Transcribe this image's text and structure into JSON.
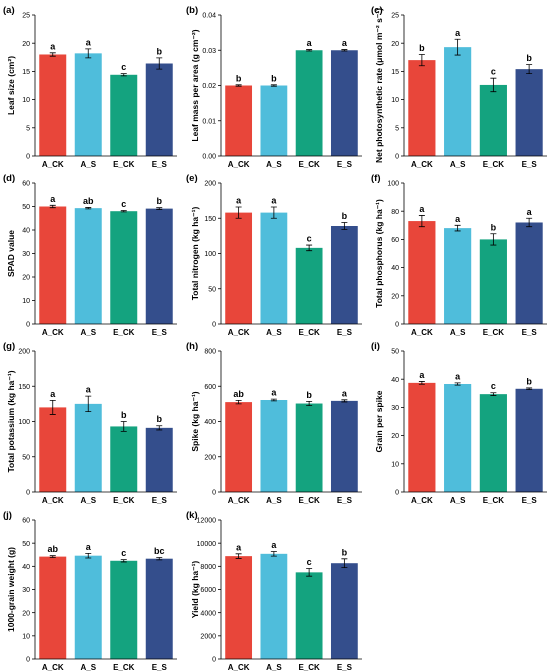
{
  "colors": {
    "A_CK": "#E8463A",
    "A_S": "#4FBDDB",
    "E_CK": "#14A37F",
    "E_S": "#344E8C"
  },
  "chart_data": [
    {
      "type": "bar",
      "panel": "(a)",
      "ylabel": "Leaf size (cm²)",
      "categories": [
        "A_CK",
        "A_S",
        "E_CK",
        "E_S"
      ],
      "values": [
        18.0,
        18.2,
        14.4,
        16.4
      ],
      "errors": [
        0.3,
        0.8,
        0.2,
        1.0
      ],
      "letters": [
        "a",
        "a",
        "c",
        "b"
      ],
      "ylim": [
        0,
        25
      ],
      "yticks": [
        0,
        5,
        10,
        15,
        20,
        25
      ],
      "ytick_labels": [
        "0",
        "5",
        "10",
        "15",
        "20",
        "25"
      ]
    },
    {
      "type": "bar",
      "panel": "(b)",
      "ylabel": "Leaf mass per area (g cm⁻²)",
      "categories": [
        "A_CK",
        "A_S",
        "E_CK",
        "E_S"
      ],
      "values": [
        0.02,
        0.02,
        0.03,
        0.03
      ],
      "errors": [
        0.0002,
        0.0002,
        0.0002,
        0.0002
      ],
      "letters": [
        "b",
        "b",
        "a",
        "a"
      ],
      "ylim": [
        0,
        0.04
      ],
      "yticks": [
        0,
        0.01,
        0.02,
        0.03,
        0.04
      ],
      "ytick_labels": [
        "0.00",
        "0.01",
        "0.02",
        "0.03",
        "0.04"
      ]
    },
    {
      "type": "bar",
      "panel": "(c)",
      "ylabel": "Net photosynthetic rate (μmol m⁻² s⁻¹)",
      "categories": [
        "A_CK",
        "A_S",
        "E_CK",
        "E_S"
      ],
      "values": [
        17.0,
        19.3,
        12.6,
        15.4
      ],
      "errors": [
        1.0,
        1.4,
        1.2,
        0.8
      ],
      "letters": [
        "b",
        "a",
        "c",
        "b"
      ],
      "ylim": [
        0,
        25
      ],
      "yticks": [
        0,
        5,
        10,
        15,
        20,
        25
      ],
      "ytick_labels": [
        "0",
        "5",
        "10",
        "15",
        "20",
        "25"
      ]
    },
    {
      "type": "bar",
      "panel": "(d)",
      "ylabel": "SPAD value",
      "categories": [
        "A_CK",
        "A_S",
        "E_CK",
        "E_S"
      ],
      "values": [
        50.0,
        49.3,
        48.0,
        49.1
      ],
      "errors": [
        0.5,
        0.3,
        0.3,
        0.4
      ],
      "letters": [
        "a",
        "ab",
        "c",
        "b"
      ],
      "ylim": [
        0,
        60
      ],
      "yticks": [
        0,
        10,
        20,
        30,
        40,
        50,
        60
      ],
      "ytick_labels": [
        "0",
        "10",
        "20",
        "30",
        "40",
        "50",
        "60"
      ]
    },
    {
      "type": "bar",
      "panel": "(e)",
      "ylabel": "Total nitrogen (kg ha⁻¹)",
      "categories": [
        "A_CK",
        "A_S",
        "E_CK",
        "E_S"
      ],
      "values": [
        158,
        158,
        108,
        139
      ],
      "errors": [
        8,
        8,
        4,
        5
      ],
      "letters": [
        "a",
        "a",
        "c",
        "b"
      ],
      "ylim": [
        0,
        200
      ],
      "yticks": [
        0,
        50,
        100,
        150,
        200
      ],
      "ytick_labels": [
        "0",
        "50",
        "100",
        "150",
        "200"
      ]
    },
    {
      "type": "bar",
      "panel": "(f)",
      "ylabel": "Total phosphorus (kg ha⁻¹)",
      "categories": [
        "A_CK",
        "A_S",
        "E_CK",
        "E_S"
      ],
      "values": [
        73,
        68,
        60,
        72
      ],
      "errors": [
        4,
        2,
        4,
        3
      ],
      "letters": [
        "a",
        "a",
        "b",
        "a"
      ],
      "ylim": [
        0,
        100
      ],
      "yticks": [
        0,
        20,
        40,
        60,
        80,
        100
      ],
      "ytick_labels": [
        "0",
        "20",
        "40",
        "60",
        "80",
        "100"
      ]
    },
    {
      "type": "bar",
      "panel": "(g)",
      "ylabel": "Total potassium (kg ha⁻¹)",
      "categories": [
        "A_CK",
        "A_S",
        "E_CK",
        "E_S"
      ],
      "values": [
        120,
        125,
        93,
        91
      ],
      "errors": [
        10,
        11,
        7,
        3
      ],
      "letters": [
        "a",
        "a",
        "b",
        "b"
      ],
      "ylim": [
        0,
        200
      ],
      "yticks": [
        0,
        50,
        100,
        150,
        200
      ],
      "ytick_labels": [
        "0",
        "50",
        "100",
        "150",
        "200"
      ]
    },
    {
      "type": "bar",
      "panel": "(h)",
      "ylabel": "Spike (kg ha⁻¹)",
      "categories": [
        "A_CK",
        "A_S",
        "E_CK",
        "E_S"
      ],
      "values": [
        510,
        522,
        502,
        517
      ],
      "errors": [
        10,
        5,
        12,
        6
      ],
      "letters": [
        "ab",
        "a",
        "b",
        "a"
      ],
      "ylim": [
        0,
        800
      ],
      "yticks": [
        0,
        200,
        400,
        600,
        800
      ],
      "ytick_labels": [
        "0",
        "200",
        "400",
        "600",
        "800"
      ]
    },
    {
      "type": "bar",
      "panel": "(i)",
      "ylabel": "Grain per spike",
      "categories": [
        "A_CK",
        "A_S",
        "E_CK",
        "E_S"
      ],
      "values": [
        38.7,
        38.3,
        34.7,
        36.6
      ],
      "errors": [
        0.5,
        0.4,
        0.5,
        0.3
      ],
      "letters": [
        "a",
        "a",
        "c",
        "b"
      ],
      "ylim": [
        0,
        50
      ],
      "yticks": [
        0,
        10,
        20,
        30,
        40,
        50
      ],
      "ytick_labels": [
        "0",
        "10",
        "20",
        "30",
        "40",
        "50"
      ]
    },
    {
      "type": "bar",
      "panel": "(j)",
      "ylabel": "1000-grain weight (g)",
      "categories": [
        "A_CK",
        "A_S",
        "E_CK",
        "E_S"
      ],
      "values": [
        44.2,
        44.6,
        42.4,
        43.3
      ],
      "errors": [
        0.4,
        1.0,
        0.5,
        0.5
      ],
      "letters": [
        "ab",
        "a",
        "c",
        "bc"
      ],
      "ylim": [
        0,
        60
      ],
      "yticks": [
        0,
        10,
        20,
        30,
        40,
        50,
        60
      ],
      "ytick_labels": [
        "0",
        "10",
        "20",
        "30",
        "40",
        "50",
        "60"
      ]
    },
    {
      "type": "bar",
      "panel": "(k)",
      "ylabel": "Yield (kg ha⁻¹)",
      "categories": [
        "A_CK",
        "A_S",
        "E_CK",
        "E_S"
      ],
      "values": [
        8880,
        9080,
        7480,
        8270
      ],
      "errors": [
        200,
        200,
        330,
        380
      ],
      "letters": [
        "a",
        "a",
        "c",
        "b"
      ],
      "ylim": [
        0,
        12000
      ],
      "yticks": [
        0,
        2000,
        4000,
        6000,
        8000,
        10000,
        12000
      ],
      "ytick_labels": [
        "0",
        "2000",
        "4000",
        "6000",
        "8000",
        "10000",
        "12000"
      ]
    }
  ]
}
